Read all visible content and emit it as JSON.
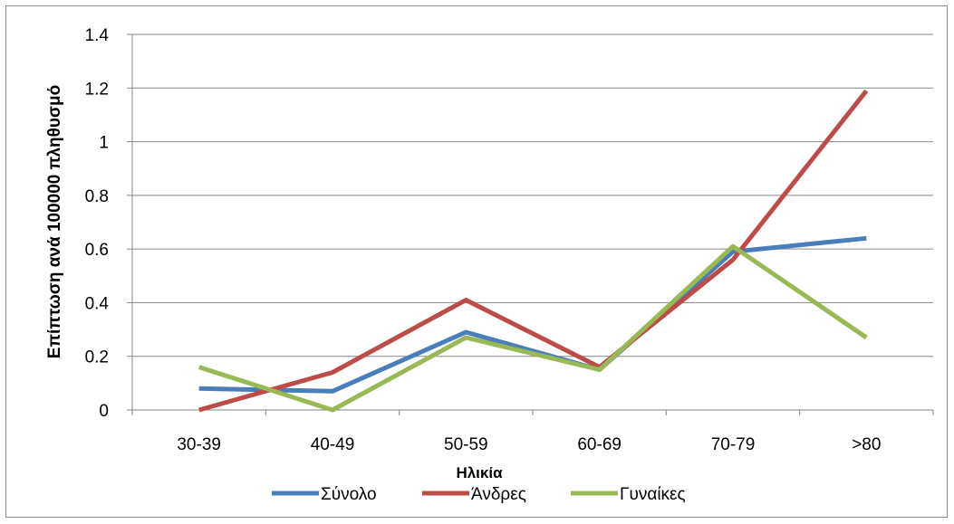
{
  "chart_data": {
    "type": "line",
    "categories": [
      "30-39",
      "40-49",
      "50-59",
      "60-69",
      "70-79",
      ">80"
    ],
    "series": [
      {
        "name": "Σύνολο",
        "color": "#4a7ebb",
        "values": [
          0.08,
          0.07,
          0.29,
          0.15,
          0.59,
          0.64
        ]
      },
      {
        "name": "Άνδρες",
        "color": "#be4b48",
        "values": [
          0.0,
          0.14,
          0.41,
          0.16,
          0.56,
          1.19
        ]
      },
      {
        "name": "Γυναίκες",
        "color": "#98b954",
        "values": [
          0.16,
          0.0,
          0.27,
          0.15,
          0.61,
          0.27
        ]
      }
    ],
    "y_ticks": [
      "0",
      "0.2",
      "0.4",
      "0.6",
      "0.8",
      "1",
      "1.2",
      "1.4"
    ],
    "ylim": [
      0,
      1.4
    ],
    "xlabel": "Ηλικία",
    "ylabel": "Επίπτωση ανά 100000  πληθυσμό",
    "grid": "horizontal",
    "legend_position": "bottom"
  }
}
